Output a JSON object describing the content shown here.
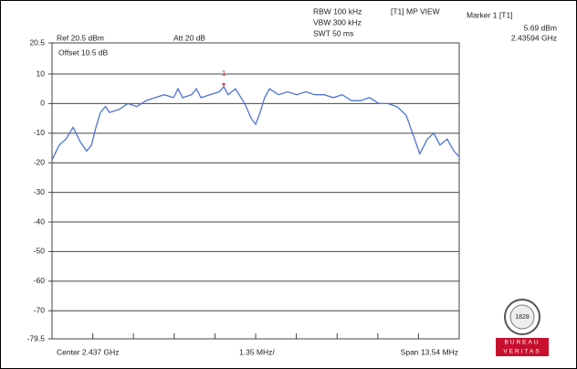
{
  "chart_data": {
    "type": "line",
    "header": {
      "rbw": "RBW 100 kHz",
      "vbw": "VBW 300 kHz",
      "swt": "SWT 50 ms",
      "mode": "[T1] MP VIEW",
      "marker_title": "Marker 1 [T1]",
      "marker_level": "5.69 dBm",
      "marker_freq": "2.43594 GHz",
      "ref": "Ref 20.5 dBm",
      "att": "Att 20 dB",
      "offset": "Offset 10.5 dB"
    },
    "footer": {
      "center": "Center 2.437 GHz",
      "div": "1.35 MHz/",
      "span": "Span 13.54 MHz"
    },
    "x": [
      2430.23,
      2430.47,
      2430.69,
      2430.93,
      2431.17,
      2431.38,
      2431.54,
      2431.69,
      2431.84,
      2432.01,
      2432.14,
      2432.45,
      2432.75,
      2433.05,
      2433.36,
      2433.66,
      2433.96,
      2434.27,
      2434.42,
      2434.57,
      2434.87,
      2435.03,
      2435.18,
      2435.48,
      2435.79,
      2435.94,
      2436.09,
      2436.33,
      2436.45,
      2436.64,
      2436.85,
      2437.0,
      2437.15,
      2437.3,
      2437.46,
      2437.76,
      2438.06,
      2438.37,
      2438.67,
      2438.97,
      2439.28,
      2439.58,
      2439.88,
      2440.19,
      2440.49,
      2440.79,
      2441.1,
      2441.4,
      2441.7,
      2442.01,
      2442.22,
      2442.46,
      2442.71,
      2442.92,
      2443.13,
      2443.37,
      2443.59,
      2443.77
    ],
    "values": [
      -19,
      -14,
      -12,
      -8,
      -13,
      -16,
      -14,
      -8,
      -3,
      -1,
      -3,
      -2,
      0,
      -1,
      1,
      2,
      3,
      2,
      5,
      2,
      3,
      5,
      2,
      3,
      4,
      5.7,
      3,
      5,
      3,
      0,
      -5,
      -7,
      -3,
      2,
      5,
      3,
      4,
      3,
      4,
      3,
      3,
      2,
      3,
      1,
      1,
      2,
      0,
      0,
      -1,
      -4,
      -10,
      -17,
      -12,
      -10,
      -14,
      -12,
      -16,
      -18
    ],
    "color": "#4f73d6",
    "marker": {
      "x": 2435.94,
      "value": 5.69,
      "label": "1",
      "color": "#e03030"
    },
    "xlim": [
      2430.23,
      2443.77
    ],
    "xticks": [
      2430.23,
      2431.584,
      2432.938,
      2434.292,
      2435.646,
      2437.0,
      2438.354,
      2439.708,
      2441.062,
      2442.416,
      2443.77
    ],
    "ylim": [
      -79.5,
      20.5
    ],
    "yticks": [
      20.5,
      10,
      0,
      -10,
      -20,
      -30,
      -40,
      -50,
      -60,
      -70,
      -79.5
    ],
    "grid": true,
    "logo": {
      "year": "1828",
      "line1": "BUREAU",
      "line2": "VERITAS"
    }
  }
}
